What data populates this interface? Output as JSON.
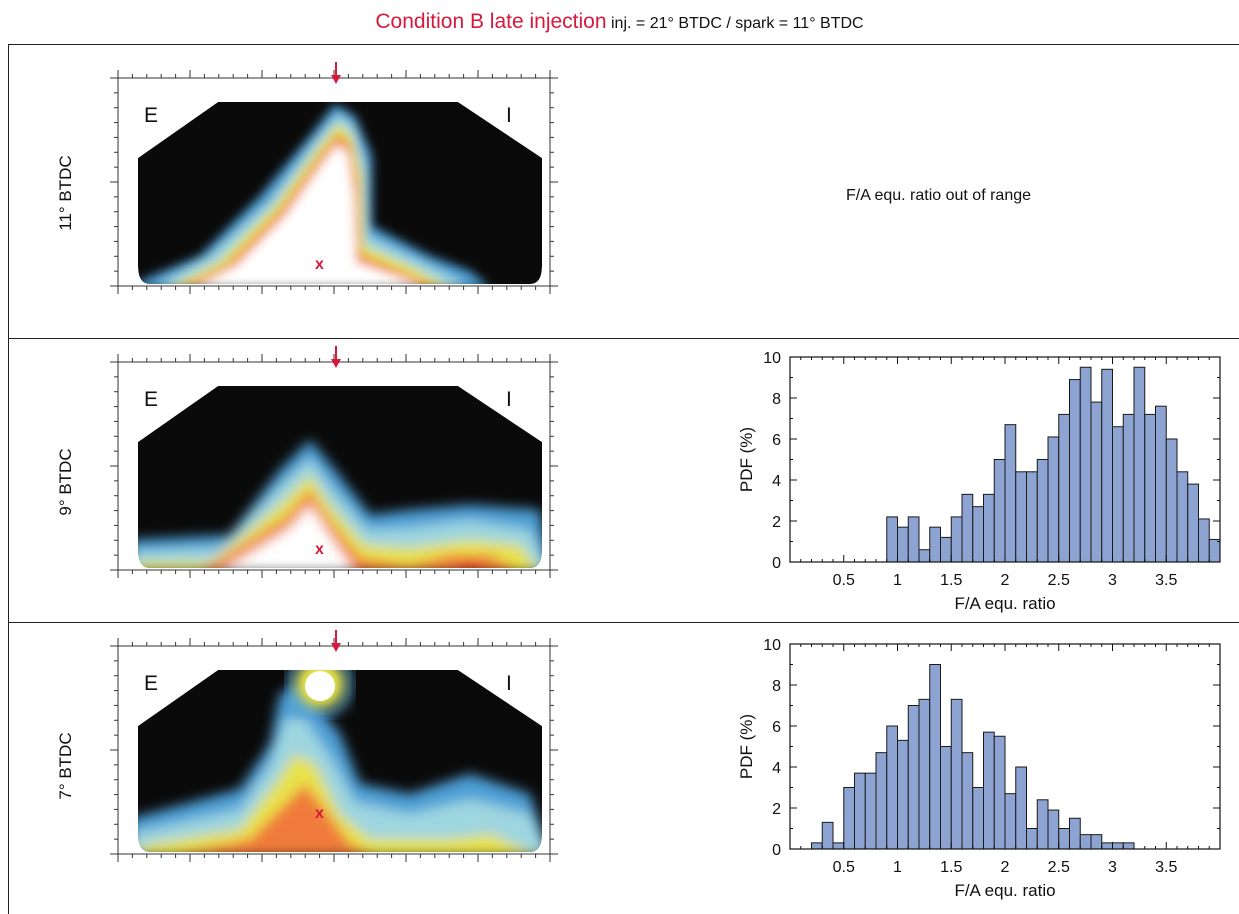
{
  "title": {
    "main": "Condition B late injection",
    "sub": "inj. = 21° BTDC / spark = 11° BTDC"
  },
  "rows": [
    {
      "label": "11° BTDC",
      "left_marker": "E",
      "right_marker": "I",
      "spark_marker": "x",
      "histogram_note": "F/A equ. ratio out of range"
    },
    {
      "label": "9° BTDC",
      "left_marker": "E",
      "right_marker": "I",
      "spark_marker": "x"
    },
    {
      "label": "7° BTDC",
      "left_marker": "E",
      "right_marker": "I",
      "spark_marker": "x"
    }
  ],
  "colors": {
    "accent": "#d7193c",
    "bar_fill": "#8da3d2",
    "bar_stroke": "#1a1a1a",
    "map_background": "#0a0a0a"
  },
  "chart_data": [
    {
      "type": "bar",
      "row": "9° BTDC",
      "xlabel": "F/A equ. ratio",
      "ylabel": "PDF (%)",
      "xlim": [
        0,
        4
      ],
      "ylim": [
        0,
        10
      ],
      "xticks": [
        "0.5",
        "1",
        "1.5",
        "2",
        "2.5",
        "3",
        "3.5"
      ],
      "yticks": [
        "0",
        "2",
        "4",
        "6",
        "8",
        "10"
      ],
      "bin_width": 0.1,
      "bin_start": 0.9,
      "values": [
        2.2,
        1.7,
        2.2,
        0.6,
        1.7,
        1.2,
        2.2,
        3.3,
        2.7,
        3.3,
        5.0,
        6.7,
        4.4,
        4.4,
        5.0,
        6.1,
        7.2,
        8.9,
        9.5,
        7.8,
        9.4,
        6.6,
        7.2,
        9.5,
        7.2,
        7.6,
        6.0,
        4.4,
        3.8,
        2.1,
        1.1
      ]
    },
    {
      "type": "bar",
      "row": "7° BTDC",
      "xlabel": "F/A equ. ratio",
      "ylabel": "PDF (%)",
      "xlim": [
        0,
        4
      ],
      "ylim": [
        0,
        10
      ],
      "xticks": [
        "0.5",
        "1",
        "1.5",
        "2",
        "2.5",
        "3",
        "3.5"
      ],
      "yticks": [
        "0",
        "2",
        "4",
        "6",
        "8",
        "10"
      ],
      "bin_width": 0.1,
      "bin_start": 0.2,
      "values": [
        0.3,
        1.3,
        0.3,
        3.0,
        3.7,
        3.7,
        4.7,
        6.0,
        5.3,
        7.0,
        7.3,
        9.0,
        5.0,
        7.3,
        4.7,
        3.0,
        5.7,
        5.5,
        2.7,
        4.0,
        1.0,
        2.4,
        1.9,
        1.0,
        1.5,
        0.7,
        0.7,
        0.3,
        0.3,
        0.3
      ]
    }
  ]
}
